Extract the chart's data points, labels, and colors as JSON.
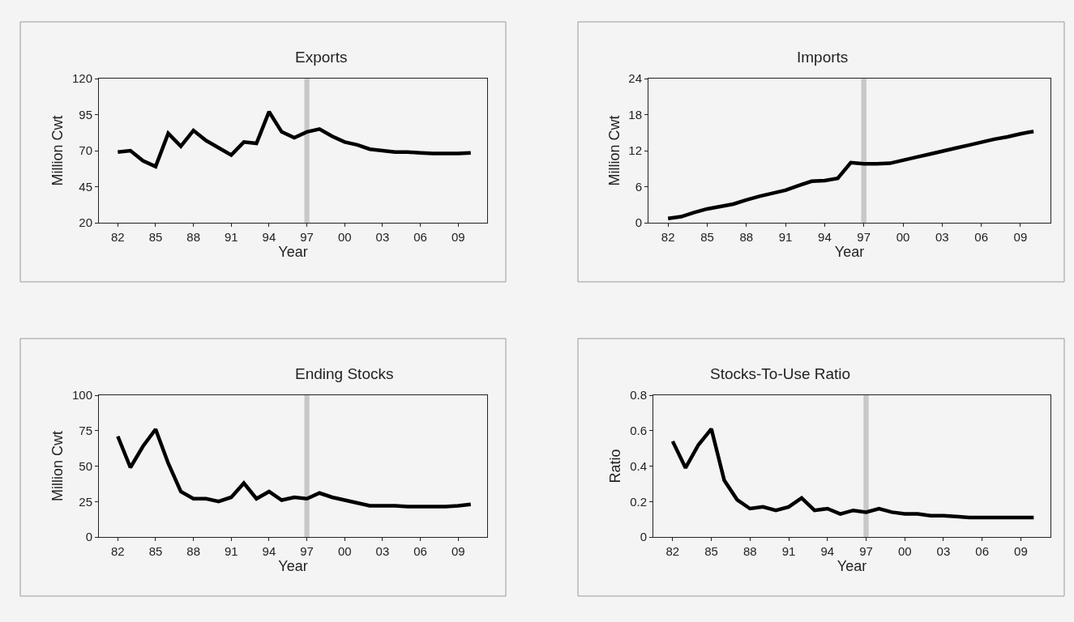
{
  "chart_data": [
    {
      "type": "line",
      "title": "Exports",
      "xlabel": "Year",
      "ylabel": "Million Cwt",
      "x": [
        1982,
        1983,
        1984,
        1985,
        1986,
        1987,
        1988,
        1989,
        1990,
        1991,
        1992,
        1993,
        1994,
        1995,
        1996,
        1997,
        1998,
        1999,
        2000,
        2001,
        2002,
        2003,
        2004,
        2005,
        2006,
        2007,
        2008,
        2009,
        2010
      ],
      "series": [
        {
          "color": "#000000",
          "values": [
            69,
            70,
            63,
            59,
            82,
            73,
            84,
            77,
            72,
            67,
            76,
            75,
            97,
            83,
            79,
            83,
            85,
            80,
            76,
            74,
            71,
            70,
            69,
            69,
            68.5,
            68,
            68,
            68,
            68.5
          ]
        }
      ],
      "xlim": [
        1980.5,
        2011.3
      ],
      "xticks": [
        {
          "value": 1982,
          "label": "82"
        },
        {
          "value": 1985,
          "label": "85"
        },
        {
          "value": 1988,
          "label": "88"
        },
        {
          "value": 1991,
          "label": "91"
        },
        {
          "value": 1994,
          "label": "94"
        },
        {
          "value": 1997,
          "label": "97"
        },
        {
          "value": 2000,
          "label": "00"
        },
        {
          "value": 2003,
          "label": "03"
        },
        {
          "value": 2006,
          "label": "06"
        },
        {
          "value": 2009,
          "label": "09"
        }
      ],
      "ylim": [
        20,
        120
      ],
      "yticks": [
        20,
        45,
        70,
        95,
        120
      ],
      "bands": [
        {
          "axis": "x",
          "from": 1996.8,
          "to": 1997.2,
          "color": "#c8c8c8"
        }
      ],
      "grid": false,
      "line_style": "solid",
      "marker": "none"
    },
    {
      "type": "line",
      "title": "Imports",
      "xlabel": "Year",
      "ylabel": "Million Cwt",
      "x": [
        1982,
        1983,
        1984,
        1985,
        1986,
        1987,
        1988,
        1989,
        1990,
        1991,
        1992,
        1993,
        1994,
        1995,
        1996,
        1997,
        1998,
        1999,
        2000,
        2001,
        2002,
        2003,
        2004,
        2005,
        2006,
        2007,
        2008,
        2009,
        2010
      ],
      "series": [
        {
          "color": "#000000",
          "values": [
            0.7,
            1.0,
            1.7,
            2.3,
            2.7,
            3.1,
            3.8,
            4.4,
            4.9,
            5.4,
            6.2,
            6.9,
            7.0,
            7.4,
            10.0,
            9.8,
            9.8,
            9.9,
            10.4,
            10.9,
            11.4,
            11.9,
            12.4,
            12.9,
            13.4,
            13.9,
            14.3,
            14.8,
            15.2
          ]
        }
      ],
      "xlim": [
        1980.5,
        2011.3
      ],
      "xticks": [
        {
          "value": 1982,
          "label": "82"
        },
        {
          "value": 1985,
          "label": "85"
        },
        {
          "value": 1988,
          "label": "88"
        },
        {
          "value": 1991,
          "label": "91"
        },
        {
          "value": 1994,
          "label": "94"
        },
        {
          "value": 1997,
          "label": "97"
        },
        {
          "value": 2000,
          "label": "00"
        },
        {
          "value": 2003,
          "label": "03"
        },
        {
          "value": 2006,
          "label": "06"
        },
        {
          "value": 2009,
          "label": "09"
        }
      ],
      "ylim": [
        0,
        24
      ],
      "yticks": [
        0,
        6,
        12,
        18,
        24
      ],
      "bands": [
        {
          "axis": "x",
          "from": 1996.8,
          "to": 1997.2,
          "color": "#c8c8c8"
        }
      ],
      "grid": false,
      "line_style": "solid",
      "marker": "none"
    },
    {
      "type": "line",
      "title": "Ending Stocks",
      "xlabel": "Year",
      "ylabel": "Million Cwt",
      "x": [
        1982,
        1983,
        1984,
        1985,
        1986,
        1987,
        1988,
        1989,
        1990,
        1991,
        1992,
        1993,
        1994,
        1995,
        1996,
        1997,
        1998,
        1999,
        2000,
        2001,
        2002,
        2003,
        2004,
        2005,
        2006,
        2007,
        2008,
        2009,
        2010
      ],
      "series": [
        {
          "color": "#000000",
          "values": [
            71,
            49,
            64,
            76,
            52,
            32,
            27,
            27,
            25,
            28,
            38,
            27,
            32,
            26,
            28,
            27,
            31,
            28,
            26,
            24,
            22,
            22,
            22,
            21.5,
            21.5,
            21.5,
            21.5,
            22,
            23
          ]
        }
      ],
      "xlim": [
        1980.5,
        2011.3
      ],
      "xticks": [
        {
          "value": 1982,
          "label": "82"
        },
        {
          "value": 1985,
          "label": "85"
        },
        {
          "value": 1988,
          "label": "88"
        },
        {
          "value": 1991,
          "label": "91"
        },
        {
          "value": 1994,
          "label": "94"
        },
        {
          "value": 1997,
          "label": "97"
        },
        {
          "value": 2000,
          "label": "00"
        },
        {
          "value": 2003,
          "label": "03"
        },
        {
          "value": 2006,
          "label": "06"
        },
        {
          "value": 2009,
          "label": "09"
        }
      ],
      "ylim": [
        0,
        100
      ],
      "yticks": [
        0,
        25,
        50,
        75,
        100
      ],
      "bands": [
        {
          "axis": "x",
          "from": 1996.8,
          "to": 1997.2,
          "color": "#c8c8c8"
        }
      ],
      "grid": false,
      "line_style": "solid",
      "marker": "none"
    },
    {
      "type": "line",
      "title": "Stocks-To-Use Ratio",
      "xlabel": "Year",
      "ylabel": "Ratio",
      "x": [
        1982,
        1983,
        1984,
        1985,
        1986,
        1987,
        1988,
        1989,
        1990,
        1991,
        1992,
        1993,
        1994,
        1995,
        1996,
        1997,
        1998,
        1999,
        2000,
        2001,
        2002,
        2003,
        2004,
        2005,
        2006,
        2007,
        2008,
        2009,
        2010
      ],
      "series": [
        {
          "color": "#000000",
          "values": [
            0.54,
            0.39,
            0.52,
            0.61,
            0.32,
            0.21,
            0.16,
            0.17,
            0.15,
            0.17,
            0.22,
            0.15,
            0.16,
            0.13,
            0.15,
            0.14,
            0.16,
            0.14,
            0.13,
            0.13,
            0.12,
            0.12,
            0.115,
            0.11,
            0.11,
            0.11,
            0.11,
            0.11,
            0.11
          ]
        }
      ],
      "xlim": [
        1980.5,
        2011.3
      ],
      "xticks": [
        {
          "value": 1982,
          "label": "82"
        },
        {
          "value": 1985,
          "label": "85"
        },
        {
          "value": 1988,
          "label": "88"
        },
        {
          "value": 1991,
          "label": "91"
        },
        {
          "value": 1994,
          "label": "94"
        },
        {
          "value": 1997,
          "label": "97"
        },
        {
          "value": 2000,
          "label": "00"
        },
        {
          "value": 2003,
          "label": "03"
        },
        {
          "value": 2006,
          "label": "06"
        },
        {
          "value": 2009,
          "label": "09"
        }
      ],
      "ylim": [
        0,
        0.8
      ],
      "yticks": [
        0,
        0.2,
        0.4,
        0.6,
        0.8
      ],
      "bands": [
        {
          "axis": "x",
          "from": 1996.8,
          "to": 1997.2,
          "color": "#c8c8c8"
        }
      ],
      "grid": false,
      "line_style": "solid",
      "marker": "none"
    }
  ]
}
